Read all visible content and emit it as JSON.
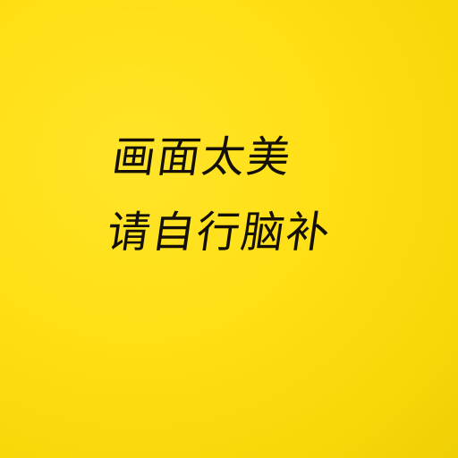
{
  "image": {
    "background_color": "#FFDF14",
    "text_color": "#141008"
  },
  "caption": {
    "line_1": "画面太美",
    "line_2": "请自行脑补"
  }
}
